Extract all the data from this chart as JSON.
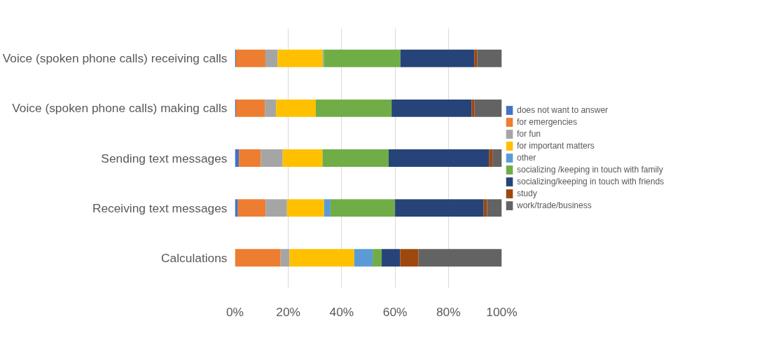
{
  "chart_data": {
    "type": "bar",
    "orientation": "horizontal",
    "stacked": true,
    "categories": [
      "Voice (spoken phone calls) receiving calls",
      "Voice (spoken phone calls) making calls",
      "Sending text messages",
      "Receiving text messages",
      "Calculations"
    ],
    "series": [
      {
        "name": "does not want to answer",
        "color": "#4472c4",
        "values": [
          0.4,
          0.4,
          1.5,
          1.1,
          0
        ]
      },
      {
        "name": "for emergencies",
        "color": "#ed7d31",
        "values": [
          11.0,
          10.8,
          8.2,
          10.4,
          17.1
        ]
      },
      {
        "name": "for fun",
        "color": "#a5a5a5",
        "values": [
          4.6,
          4.2,
          8.2,
          8.0,
          3.3
        ]
      },
      {
        "name": "for important matters",
        "color": "#ffc000",
        "values": [
          17.0,
          14.9,
          14.9,
          13.9,
          24.3
        ]
      },
      {
        "name": "other",
        "color": "#5b9bd5",
        "values": [
          0.3,
          0,
          0,
          2.4,
          6.9
        ]
      },
      {
        "name": "socializing /keeping in touch with family",
        "color": "#70ad47",
        "values": [
          28.7,
          28.4,
          24.8,
          24.2,
          3.4
        ]
      },
      {
        "name": "socializing/keeping in touch with friends",
        "color": "#264478",
        "values": [
          27.7,
          30.0,
          37.6,
          33.2,
          6.9
        ]
      },
      {
        "name": "study",
        "color": "#9e480e",
        "values": [
          1.1,
          1.1,
          1.3,
          1.3,
          6.9
        ]
      },
      {
        "name": "work/trade/business",
        "color": "#636363",
        "values": [
          9.2,
          10.2,
          3.5,
          5.5,
          31.2
        ]
      }
    ],
    "xlim": [
      0,
      100
    ],
    "xticks": [
      {
        "value": 0,
        "label": "0%"
      },
      {
        "value": 20,
        "label": "20%"
      },
      {
        "value": 40,
        "label": "40%"
      },
      {
        "value": 60,
        "label": "60%"
      },
      {
        "value": 80,
        "label": "80%"
      },
      {
        "value": 100,
        "label": "100%"
      }
    ],
    "grid": "x",
    "legend": "right"
  }
}
